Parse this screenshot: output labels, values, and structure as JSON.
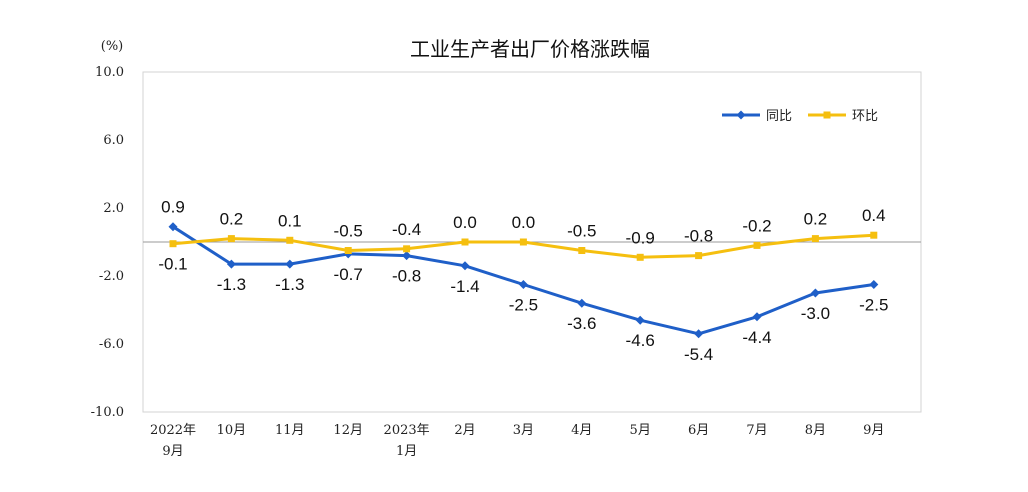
{
  "chart_data": {
    "type": "line",
    "title": "工业生产者出厂价格涨跌幅",
    "ylabel": "(%)",
    "ylim": [
      -10,
      10
    ],
    "yticks": [
      "10.0",
      "6.0",
      "2.0",
      "-2.0",
      "-6.0",
      "-10.0"
    ],
    "ytick_values": [
      10,
      6,
      2,
      -2,
      -6,
      -10
    ],
    "categories": [
      [
        "2022年",
        "9月"
      ],
      [
        "10月"
      ],
      [
        "11月"
      ],
      [
        "12月"
      ],
      [
        "2023年",
        "1月"
      ],
      [
        "2月"
      ],
      [
        "3月"
      ],
      [
        "4月"
      ],
      [
        "5月"
      ],
      [
        "6月"
      ],
      [
        "7月"
      ],
      [
        "8月"
      ],
      [
        "9月"
      ]
    ],
    "series": [
      {
        "name": "同比",
        "color": "#1f5fc8",
        "marker": "diamond",
        "values": [
          0.9,
          -1.3,
          -1.3,
          -0.7,
          -0.8,
          -1.4,
          -2.5,
          -3.6,
          -4.6,
          -5.4,
          -4.4,
          -3.0,
          -2.5
        ],
        "labels": [
          "0.9",
          "-1.3",
          "-1.3",
          "-0.7",
          "-0.8",
          "-1.4",
          "-2.5",
          "-3.6",
          "-4.6",
          "-5.4",
          "-4.4",
          "-3.0",
          "-2.5"
        ],
        "label_side": [
          "above",
          "below",
          "below",
          "below",
          "below",
          "below",
          "below",
          "below",
          "below",
          "below",
          "below",
          "below",
          "below"
        ]
      },
      {
        "name": "环比",
        "color": "#f5bf0f",
        "marker": "square",
        "values": [
          -0.1,
          0.2,
          0.1,
          -0.5,
          -0.4,
          0.0,
          0.0,
          -0.5,
          -0.9,
          -0.8,
          -0.2,
          0.2,
          0.4
        ],
        "labels": [
          "-0.1",
          "0.2",
          "0.1",
          "-0.5",
          "-0.4",
          "0.0",
          "0.0",
          "-0.5",
          "-0.9",
          "-0.8",
          "-0.2",
          "0.2",
          "0.4"
        ],
        "label_side": [
          "below",
          "above",
          "above",
          "above",
          "above",
          "above",
          "above",
          "above",
          "above",
          "above",
          "above",
          "above",
          "above"
        ]
      }
    ],
    "grid": false,
    "zero_line": true,
    "legend_position": "top-right"
  }
}
